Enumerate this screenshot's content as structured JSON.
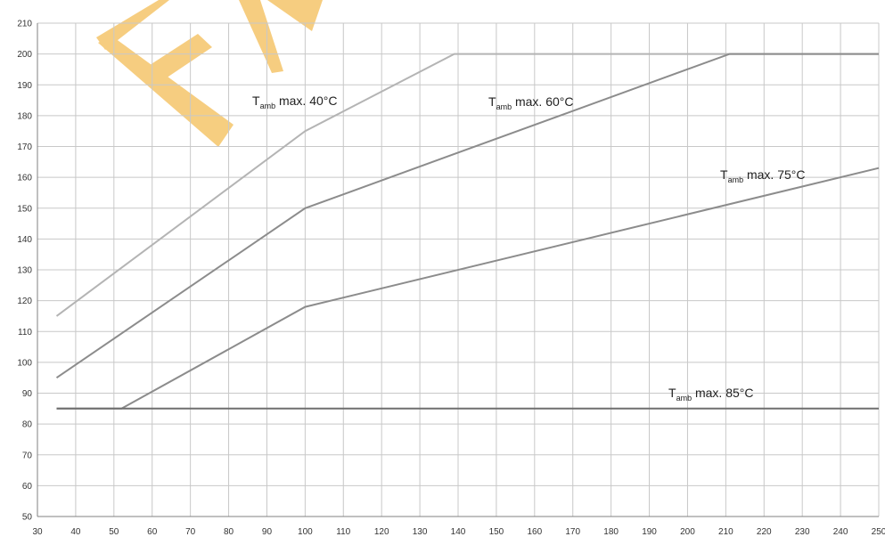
{
  "chart_data": {
    "type": "line",
    "title": "",
    "xlabel": "",
    "ylabel": "",
    "xlim": [
      30,
      250
    ],
    "ylim": [
      50,
      210
    ],
    "x_ticks": [
      30,
      40,
      50,
      60,
      70,
      80,
      90,
      100,
      110,
      120,
      130,
      140,
      150,
      160,
      170,
      180,
      190,
      200,
      210,
      220,
      230,
      240,
      250
    ],
    "y_ticks": [
      50,
      60,
      70,
      80,
      90,
      100,
      110,
      120,
      130,
      140,
      150,
      160,
      170,
      180,
      190,
      200,
      210
    ],
    "grid": true,
    "series": [
      {
        "name": "Tamb max. 40°C",
        "label_main": "T",
        "label_sub": "amb",
        "label_rest": " max. 40°C",
        "color": "#b4b4b4",
        "points": [
          [
            35,
            115
          ],
          [
            100,
            175
          ],
          [
            139,
            200
          ],
          [
            250,
            200
          ]
        ]
      },
      {
        "name": "Tamb max. 60°C",
        "label_main": "T",
        "label_sub": "amb",
        "label_rest": " max. 60°C",
        "color": "#8c8c8c",
        "points": [
          [
            35,
            95
          ],
          [
            100,
            150
          ],
          [
            211,
            200
          ],
          [
            250,
            200
          ]
        ]
      },
      {
        "name": "Tamb max. 75°C",
        "label_main": "T",
        "label_sub": "amb",
        "label_rest": " max. 75°C",
        "color": "#8c8c8c",
        "points": [
          [
            35,
            85
          ],
          [
            52,
            85
          ],
          [
            100,
            118
          ],
          [
            250,
            163
          ]
        ]
      },
      {
        "name": "Tamb max. 85°C",
        "label_main": "T",
        "label_sub": "amb",
        "label_rest": " max. 85°C",
        "color": "#6e6e6e",
        "points": [
          [
            35,
            85
          ],
          [
            250,
            85
          ]
        ]
      }
    ]
  },
  "colors": {
    "grid": "#c8c8c8",
    "axis": "#808080",
    "watermark": "#f5c56a"
  },
  "watermark": {
    "icon": "logo-watermark"
  }
}
